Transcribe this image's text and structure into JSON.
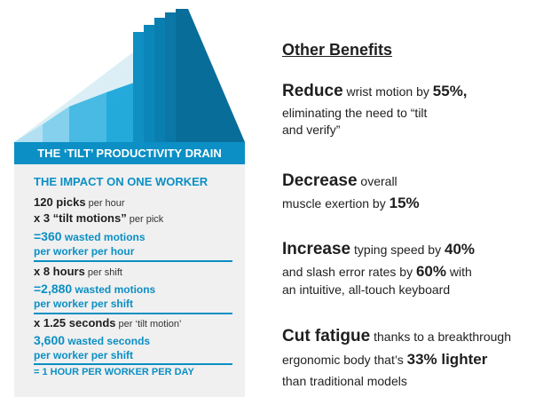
{
  "left_panel": {
    "banner": "THE ‘TILT’ PRODUCTIVITY DRAIN",
    "impact_heading": "THE IMPACT ON ONE WORKER",
    "lines": [
      {
        "bold": "120 picks",
        "small": " per hour"
      },
      {
        "bold": "x 3 “tilt motions”",
        "small": " per pick"
      },
      {
        "blue_big": "=360",
        "blue_small": " wasted motions"
      },
      {
        "blue_small": "per worker per hour"
      },
      {
        "bold": "x 8 hours",
        "small": " per shift"
      },
      {
        "blue_big": "=2,880",
        "blue_small": " wasted motions"
      },
      {
        "blue_small": "per worker per shift"
      },
      {
        "bold": "x 1.25 seconds",
        "small": " per ‘tilt motion’"
      },
      {
        "blue_big": "3,600",
        "blue_small": " wasted seconds"
      },
      {
        "blue_small": "per worker per shift"
      }
    ],
    "final": "= 1 HOUR PER WORKER PER DAY"
  },
  "right_panel": {
    "title": "Other Benefits",
    "b1": {
      "strong": "Reduce",
      "t1": "  wrist motion by ",
      "pct": "55%,",
      "t2": "eliminating the need to “tilt",
      "t3": "and verify”"
    },
    "b2": {
      "strong": "Decrease",
      "t1": " overall",
      "t2": "muscle exertion by ",
      "pct": "15%"
    },
    "b3": {
      "strong": "Increase",
      "t1": " typing speed by ",
      "pct1": "40%",
      "t2": "and slash error rates by ",
      "pct2": "60%",
      "t3": " with",
      "t4": "an intuitive, all-touch keyboard"
    },
    "b4": {
      "strong": "Cut fatigue",
      "t1": " thanks to a breakthrough",
      "t2": "ergonomic body that’s ",
      "pct": "33% lighter",
      "t3": "than traditional models"
    }
  },
  "colors": {
    "brand_blue": "#0b8fc4",
    "panel_gray": "#f0f0f0"
  }
}
